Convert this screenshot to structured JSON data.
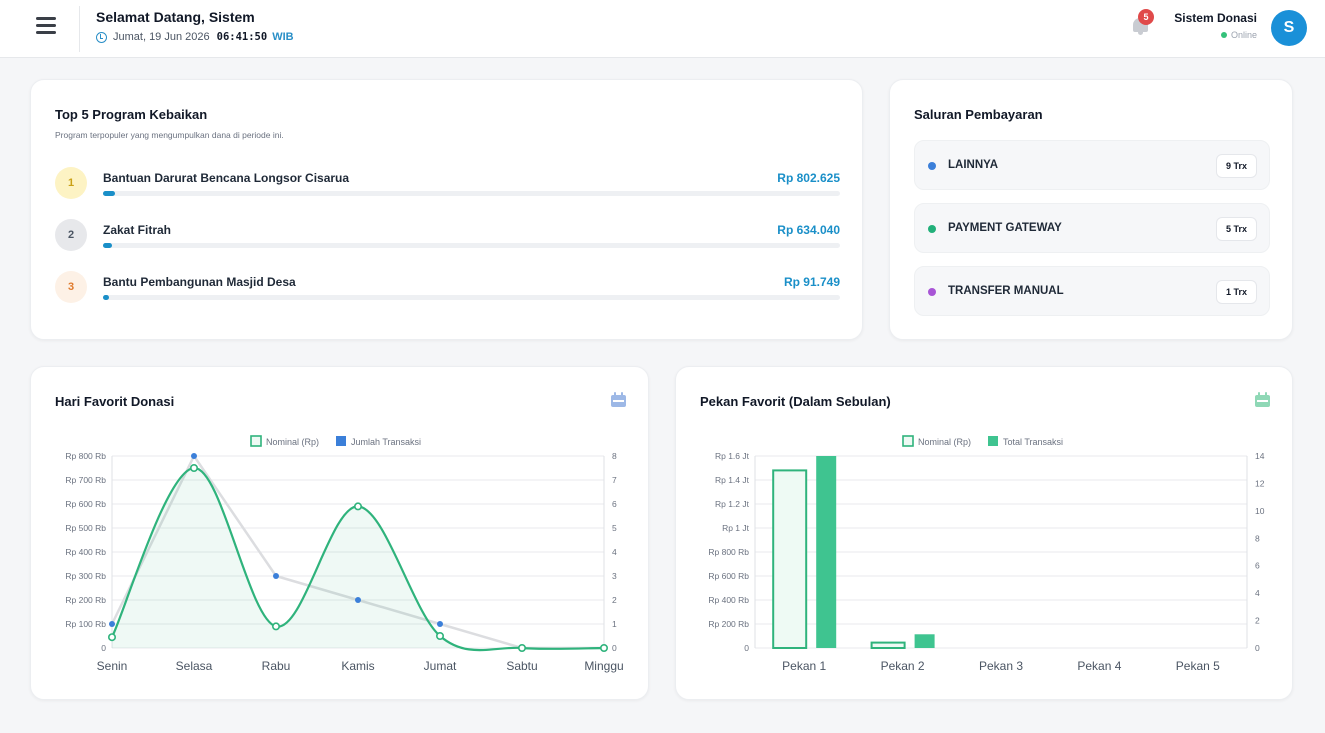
{
  "header": {
    "welcome": "Selamat Datang, Sistem",
    "date": "Jumat, 19 Jun 2026",
    "time": "06:41:50",
    "timezone": "WIB",
    "notification_count": "5",
    "user_name": "Sistem Donasi",
    "user_status": "Online",
    "avatar_initial": "S"
  },
  "programs": {
    "title": "Top 5 Program Kebaikan",
    "subtitle": "Program terpopuler yang mengumpulkan dana di periode ini.",
    "items": [
      {
        "rank": "1",
        "name": "Bantuan Darurat Bencana Longsor Cisarua",
        "amount": "Rp 802.625",
        "progress": 0.016
      },
      {
        "rank": "2",
        "name": "Zakat Fitrah",
        "amount": "Rp 634.040",
        "progress": 0.012
      },
      {
        "rank": "3",
        "name": "Bantu Pembangunan Masjid Desa",
        "amount": "Rp 91.749",
        "progress": 0.006
      }
    ]
  },
  "channels": {
    "title": "Saluran Pembayaran",
    "items": [
      {
        "label": "LAINNYA",
        "count": "9 Trx",
        "color": "#3b7fd9"
      },
      {
        "label": "PAYMENT GATEWAY",
        "count": "5 Trx",
        "color": "#22b07a"
      },
      {
        "label": "TRANSFER MANUAL",
        "count": "1 Trx",
        "color": "#a855d6"
      }
    ]
  },
  "hari_favorit": {
    "title": "Hari Favorit Donasi",
    "icon": "calendar-icon",
    "icon_color": "#9db8e6"
  },
  "pekan_favorit": {
    "title": "Pekan Favorit (Dalam Sebulan)",
    "icon": "calendar-icon",
    "icon_color": "#8fd8b6"
  },
  "chart_data": [
    {
      "type": "line",
      "legend": [
        "Nominal (Rp)",
        "Jumlah Transaksi"
      ],
      "legend_placement": "top-center",
      "categories": [
        "Senin",
        "Selasa",
        "Rabu",
        "Kamis",
        "Jumat",
        "Sabtu",
        "Minggu"
      ],
      "y_ticks": [
        "0",
        "Rp 100 Rb",
        "Rp 200 Rb",
        "Rp 300 Rb",
        "Rp 400 Rb",
        "Rp 500 Rb",
        "Rp 600 Rb",
        "Rp 700 Rb",
        "Rp 800 Rb"
      ],
      "y2_ticks": [
        "0",
        "1",
        "2",
        "3",
        "4",
        "5",
        "6",
        "7",
        "8"
      ],
      "ylim": [
        0,
        800000
      ],
      "y2lim": [
        0,
        8
      ],
      "series": [
        {
          "name": "Nominal (Rp)",
          "axis": "left",
          "color": "#2fb37c",
          "values": [
            45000,
            750000,
            90000,
            590000,
            50000,
            0,
            0
          ]
        },
        {
          "name": "Jumlah Transaksi",
          "axis": "right",
          "color": "#3b7fd9",
          "values": [
            1,
            8,
            3,
            2,
            1,
            0,
            0
          ]
        }
      ]
    },
    {
      "type": "bar",
      "legend": [
        "Nominal (Rp)",
        "Total Transaksi"
      ],
      "legend_placement": "top-center",
      "categories": [
        "Pekan 1",
        "Pekan 2",
        "Pekan 3",
        "Pekan 4",
        "Pekan 5"
      ],
      "y_ticks": [
        "0",
        "Rp 200 Rb",
        "Rp 400 Rb",
        "Rp 600 Rb",
        "Rp 800 Rb",
        "Rp 1 Jt",
        "Rp 1.2 Jt",
        "Rp 1.4 Jt",
        "Rp 1.6 Jt"
      ],
      "y2_ticks": [
        "0",
        "2",
        "4",
        "6",
        "8",
        "10",
        "12",
        "14"
      ],
      "ylim": [
        0,
        1600000
      ],
      "y2lim": [
        0,
        14
      ],
      "series": [
        {
          "name": "Nominal (Rp)",
          "axis": "left",
          "color": "#2fb37c",
          "values": [
            1480000,
            45000,
            0,
            0,
            0
          ]
        },
        {
          "name": "Total Transaksi",
          "axis": "right",
          "color": "#3fc490",
          "values": [
            14,
            1,
            0,
            0,
            0
          ]
        }
      ]
    }
  ]
}
